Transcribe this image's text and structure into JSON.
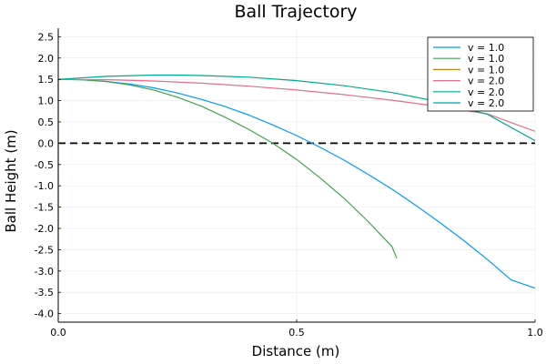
{
  "chart_data": {
    "type": "line",
    "title": "Ball Trajectory",
    "xlabel": "Distance (m)",
    "ylabel": "Ball Height (m)",
    "xlim": [
      0,
      1.0
    ],
    "ylim": [
      -4.2,
      2.7
    ],
    "x_ticks": [
      0.0,
      0.5,
      1.0
    ],
    "x_tick_labels": [
      "0.0",
      "0.5",
      "1.0"
    ],
    "y_ticks": [
      2.5,
      2.0,
      1.5,
      1.0,
      0.5,
      0.0,
      -0.5,
      -1.0,
      -1.5,
      -2.0,
      -2.5,
      -3.0,
      -3.5,
      -4.0
    ],
    "y_tick_labels": [
      "2.5",
      "2.0",
      "1.5",
      "1.0",
      "0.5",
      "0.0",
      "-0.5",
      "-1.0",
      "-1.5",
      "-2.0",
      "-2.5",
      "-3.0",
      "-3.5",
      "-4.0"
    ],
    "grid": true,
    "legend_position": "top-right",
    "reference_line": {
      "y": 0.0,
      "style": "dashed",
      "color": "#000000"
    },
    "series": [
      {
        "name": "v = 1.0",
        "color": "#009AFA",
        "x": [
          0.0,
          0.05,
          0.1,
          0.15,
          0.2,
          0.25,
          0.3,
          0.35,
          0.4,
          0.45,
          0.5,
          0.55,
          0.6,
          0.65,
          0.7,
          0.75,
          0.8,
          0.85,
          0.9,
          0.95,
          1.0
        ],
        "y": [
          1.5,
          1.49,
          1.45,
          1.39,
          1.3,
          1.18,
          1.03,
          0.86,
          0.66,
          0.43,
          0.18,
          -0.1,
          -0.4,
          -0.73,
          -1.08,
          -1.46,
          -1.86,
          -2.28,
          -2.73,
          -3.21,
          -3.4
        ]
      },
      {
        "name": "v = 1.0",
        "color": "#3EA44E",
        "x": [
          0.0,
          0.05,
          0.1,
          0.15,
          0.2,
          0.25,
          0.3,
          0.35,
          0.4,
          0.45,
          0.5,
          0.55,
          0.6,
          0.65,
          0.7,
          0.71
        ],
        "y": [
          1.5,
          1.49,
          1.45,
          1.37,
          1.25,
          1.08,
          0.87,
          0.61,
          0.32,
          0.0,
          -0.38,
          -0.82,
          -1.3,
          -1.84,
          -2.43,
          -2.7
        ]
      },
      {
        "name": "v = 1.0",
        "color": "#C2891A",
        "x": [
          0.0,
          0.0
        ],
        "y": [
          1.5,
          -2.5
        ]
      },
      {
        "name": "v = 2.0",
        "color": "#E26F8D",
        "x": [
          0.0,
          0.1,
          0.2,
          0.3,
          0.4,
          0.5,
          0.6,
          0.7,
          0.8,
          0.9,
          1.0
        ],
        "y": [
          1.5,
          1.49,
          1.46,
          1.41,
          1.34,
          1.25,
          1.14,
          1.01,
          0.86,
          0.69,
          0.28
        ]
      },
      {
        "name": "v = 2.0",
        "color": "#00A98D",
        "x": [
          0.0,
          0.1,
          0.2,
          0.25,
          0.3,
          0.4,
          0.5,
          0.6,
          0.7,
          0.8,
          0.9,
          1.0
        ],
        "y": [
          1.5,
          1.57,
          1.6,
          1.6,
          1.59,
          1.55,
          1.47,
          1.35,
          1.19,
          0.97,
          0.68,
          0.06
        ]
      },
      {
        "name": "v = 2.0",
        "color": "#00A3B0",
        "x": [
          0.0,
          0.0
        ],
        "y": [
          1.5,
          1.5
        ]
      }
    ]
  }
}
